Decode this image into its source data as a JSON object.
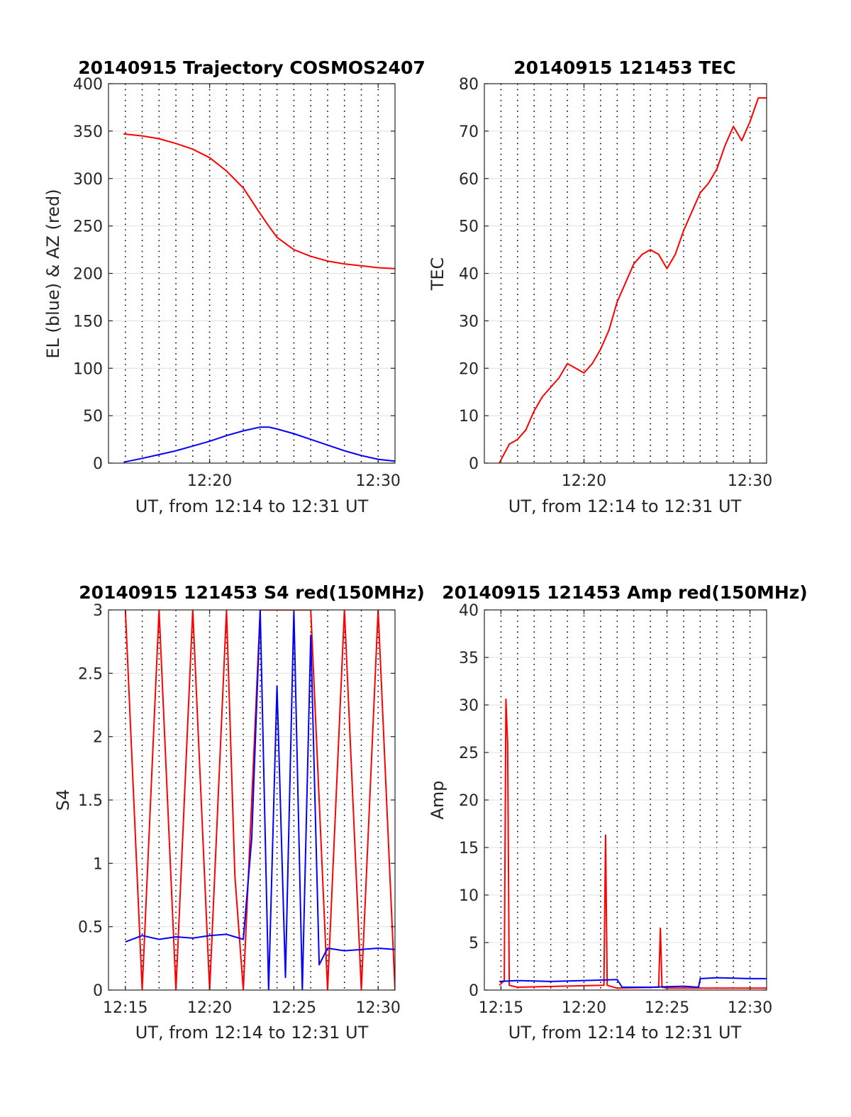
{
  "chart_data": [
    {
      "type": "line",
      "title": "20140915 Trajectory COSMOS2407",
      "xlabel": "UT, from 12:14 to 12:31 UT",
      "ylabel": "EL (blue) & AZ (red)",
      "xlim": [
        "12:14",
        "12:31"
      ],
      "ylim": [
        0,
        400
      ],
      "xticks": [
        "12:20",
        "12:30"
      ],
      "yticks": [
        0,
        50,
        100,
        150,
        200,
        250,
        300,
        350,
        400
      ],
      "grid": true,
      "series": [
        {
          "color": "#ff0000",
          "x": [
            "12:14.9",
            "12:16",
            "12:17",
            "12:18",
            "12:19",
            "12:20",
            "12:21",
            "12:22",
            "12:23",
            "12:23.5",
            "12:24",
            "12:25",
            "12:26",
            "12:27",
            "12:28",
            "12:29",
            "12:30",
            "12:31"
          ],
          "values": [
            347,
            345,
            342,
            337,
            331,
            322,
            308,
            290,
            263,
            250,
            238,
            225,
            218,
            213,
            210,
            208,
            206,
            205
          ]
        },
        {
          "color": "#0000ff",
          "x": [
            "12:14.9",
            "12:16",
            "12:17",
            "12:18",
            "12:19",
            "12:20",
            "12:21",
            "12:22",
            "12:23",
            "12:23.5",
            "12:24",
            "12:25",
            "12:26",
            "12:27",
            "12:28",
            "12:29",
            "12:30",
            "12:31"
          ],
          "values": [
            1,
            5,
            9,
            13,
            18,
            23,
            29,
            34,
            38,
            38,
            36,
            31,
            25,
            19,
            13,
            8,
            4,
            2
          ]
        }
      ]
    },
    {
      "type": "line",
      "title": "20140915 121453 TEC",
      "xlabel": "UT, from 12:14 to 12:31 UT",
      "ylabel": "TEC",
      "xlim": [
        "12:14",
        "12:31"
      ],
      "ylim": [
        0,
        80
      ],
      "xticks": [
        "12:20",
        "12:30"
      ],
      "yticks": [
        0,
        10,
        20,
        30,
        40,
        50,
        60,
        70,
        80
      ],
      "grid": true,
      "series": [
        {
          "color": "#ff0000",
          "x": [
            "12:14.9",
            "12:15.5",
            "12:16",
            "12:16.5",
            "12:17",
            "12:17.5",
            "12:18",
            "12:18.5",
            "12:19",
            "12:19.5",
            "12:20",
            "12:20.5",
            "12:21",
            "12:21.5",
            "12:22",
            "12:22.5",
            "12:23",
            "12:23.5",
            "12:24",
            "12:24.5",
            "12:25",
            "12:25.5",
            "12:26",
            "12:26.5",
            "12:27",
            "12:27.5",
            "12:28",
            "12:28.5",
            "12:29",
            "12:29.5",
            "12:30",
            "12:30.5",
            "12:31"
          ],
          "values": [
            0,
            4,
            5,
            7,
            11,
            14,
            16,
            18,
            21,
            20,
            19,
            21,
            24,
            28,
            34,
            38,
            42,
            44,
            45,
            44,
            41,
            44,
            49,
            53,
            57,
            59,
            62,
            67,
            71,
            68,
            72,
            77,
            77
          ]
        }
      ]
    },
    {
      "type": "line",
      "title": "20140915 121453 S4 red(150MHz)",
      "xlabel": "UT, from 12:14 to 12:31 UT",
      "ylabel": "S4",
      "xlim": [
        "12:14",
        "12:31"
      ],
      "ylim": [
        0,
        3
      ],
      "xticks": [
        "12:15",
        "12:20",
        "12:25",
        "12:30"
      ],
      "yticks": [
        0,
        0.5,
        1,
        1.5,
        2,
        2.5,
        3
      ],
      "grid": true,
      "series": [
        {
          "color": "#ff0000",
          "x": [
            "12:15",
            "12:16",
            "12:17",
            "12:18",
            "12:19",
            "12:20",
            "12:21",
            "12:21.5",
            "12:22",
            "12:23",
            "12:24",
            "12:25",
            "12:26",
            "12:27",
            "12:28",
            "12:29",
            "12:30",
            "12:31"
          ],
          "values": [
            3,
            0,
            3,
            0,
            3,
            0,
            3,
            0.9,
            0,
            3,
            3,
            3,
            3,
            0,
            3,
            0,
            3,
            0
          ]
        },
        {
          "color": "#0000ff",
          "x": [
            "12:15",
            "12:16",
            "12:17",
            "12:18",
            "12:19",
            "12:20",
            "12:21",
            "12:22",
            "12:22.5",
            "12:23",
            "12:23.5",
            "12:24",
            "12:24.5",
            "12:25",
            "12:25.5",
            "12:26",
            "12:26.5",
            "12:27",
            "12:28",
            "12:29",
            "12:30",
            "12:31"
          ],
          "values": [
            0.38,
            0.43,
            0.4,
            0.42,
            0.41,
            0.43,
            0.44,
            0.4,
            1.2,
            3,
            0,
            2.4,
            0.1,
            3,
            0,
            2.8,
            0.2,
            0.33,
            0.31,
            0.32,
            0.33,
            0.32
          ]
        }
      ]
    },
    {
      "type": "line",
      "title": "20140915 121453 Amp red(150MHz)",
      "xlabel": "UT, from 12:14 to 12:31 UT",
      "ylabel": "Amp",
      "xlim": [
        "12:14",
        "12:31"
      ],
      "ylim": [
        0,
        40
      ],
      "xticks": [
        "12:15",
        "12:20",
        "12:25",
        "12:30"
      ],
      "yticks": [
        0,
        5,
        10,
        15,
        20,
        25,
        30,
        35,
        40
      ],
      "grid": true,
      "series": [
        {
          "color": "#ff0000",
          "x": [
            "12:14.9",
            "12:15.2",
            "12:15.3",
            "12:15.4",
            "12:15.5",
            "12:16",
            "12:21.2",
            "12:21.3",
            "12:21.4",
            "12:22",
            "12:24.5",
            "12:24.6",
            "12:24.7",
            "12:25",
            "12:31"
          ],
          "values": [
            0.5,
            1,
            30.6,
            26,
            0.5,
            0.3,
            0.5,
            16.3,
            0.5,
            0.2,
            0.3,
            6.5,
            0.3,
            0.2,
            0.2
          ]
        },
        {
          "color": "#0000ff",
          "x": [
            "12:14.9",
            "12:16",
            "12:18",
            "12:20",
            "12:22",
            "12:22.3",
            "12:24",
            "12:26",
            "12:26.9",
            "12:27",
            "12:28",
            "12:30",
            "12:31"
          ],
          "values": [
            0.9,
            1,
            0.9,
            1,
            1.1,
            0.3,
            0.3,
            0.4,
            0.3,
            1.2,
            1.3,
            1.2,
            1.2
          ]
        }
      ]
    }
  ]
}
